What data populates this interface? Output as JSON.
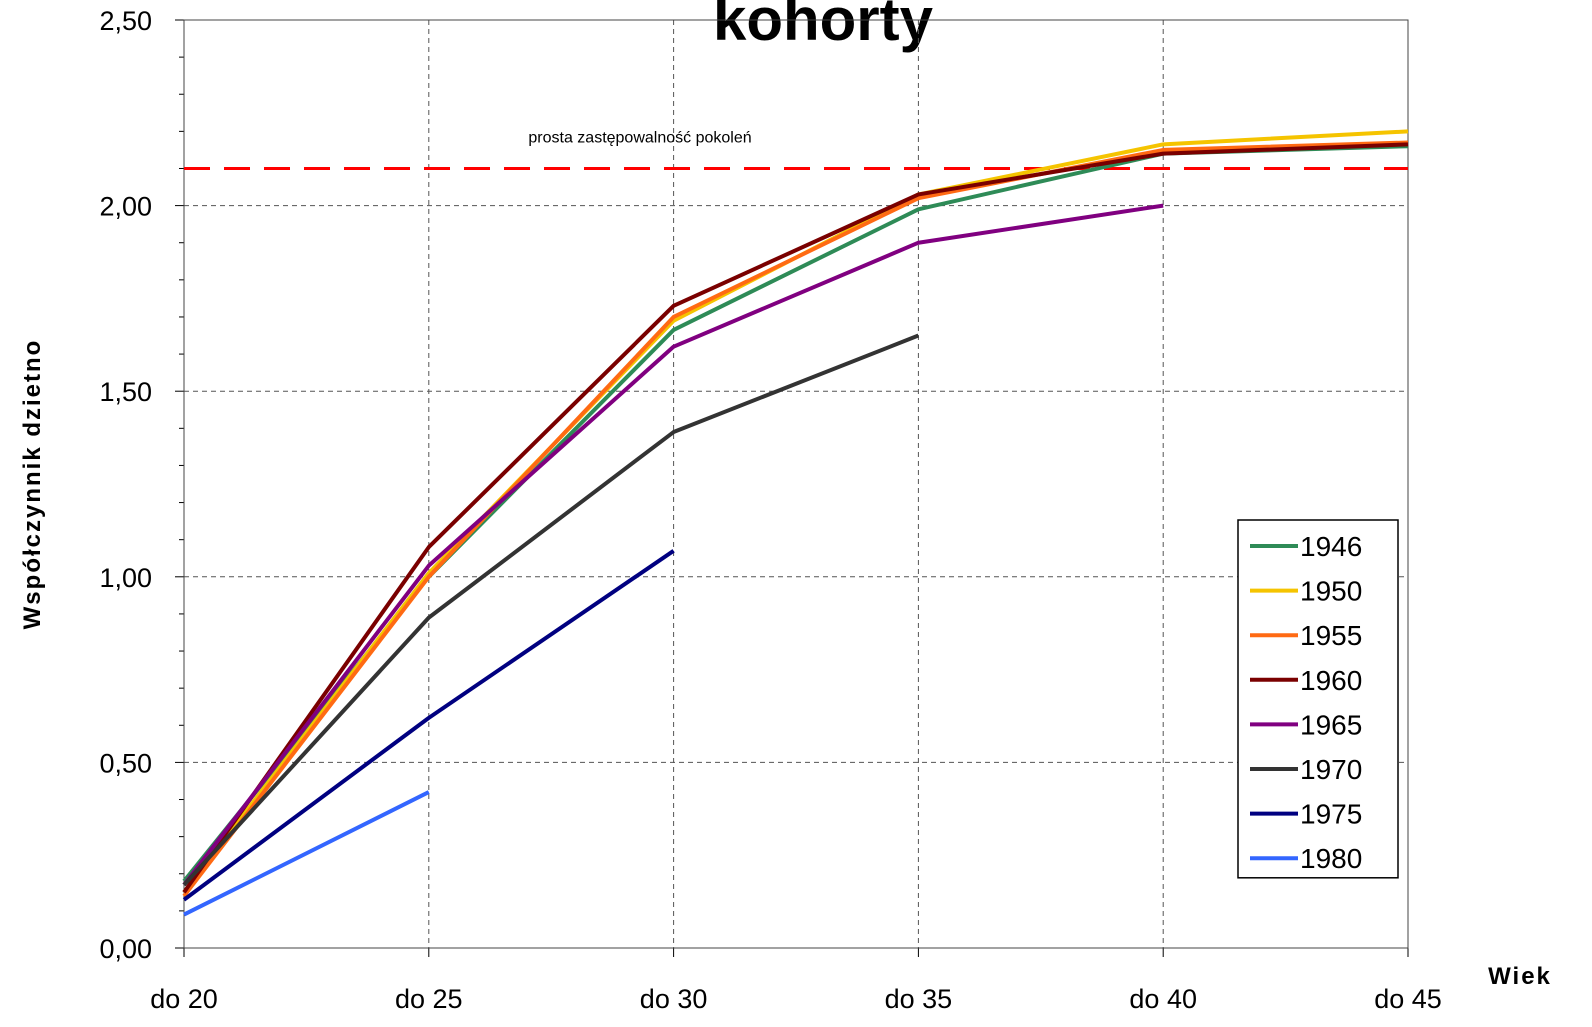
{
  "chart_data": {
    "type": "line",
    "title": "kohorty",
    "x_label": "Wiek",
    "y_label": "Współczynnik dzietno",
    "categories": [
      "do 20",
      "do 25",
      "do 30",
      "do 35",
      "do 40",
      "do 45"
    ],
    "series": [
      {
        "name": "1946",
        "color": "#2e8b57",
        "values": [
          0.18,
          1.0,
          1.665,
          1.99,
          2.14,
          2.16
        ]
      },
      {
        "name": "1950",
        "color": "#f5c400",
        "values": [
          0.15,
          1.01,
          1.69,
          2.03,
          2.165,
          2.2
        ]
      },
      {
        "name": "1955",
        "color": "#ff6a13",
        "values": [
          0.14,
          1.0,
          1.7,
          2.02,
          2.15,
          2.17
        ]
      },
      {
        "name": "1960",
        "color": "#7a0000",
        "values": [
          0.15,
          1.08,
          1.73,
          2.03,
          2.14,
          2.165
        ]
      },
      {
        "name": "1965",
        "color": "#800080",
        "values": [
          0.17,
          1.03,
          1.62,
          1.9,
          2.0,
          null
        ]
      },
      {
        "name": "1970",
        "color": "#333333",
        "values": [
          0.17,
          0.89,
          1.39,
          1.65,
          null,
          null
        ]
      },
      {
        "name": "1975",
        "color": "#000080",
        "values": [
          0.13,
          0.62,
          1.07,
          null,
          null,
          null
        ]
      },
      {
        "name": "1980",
        "color": "#3366ff",
        "values": [
          0.09,
          0.42,
          null,
          null,
          null,
          null
        ]
      }
    ],
    "ylim": [
      0,
      2.5
    ],
    "yticks": [
      {
        "value": 0,
        "label": "0,00"
      },
      {
        "value": 0.5,
        "label": "0,50"
      },
      {
        "value": 1,
        "label": "1,00"
      },
      {
        "value": 1.5,
        "label": "1,50"
      },
      {
        "value": 2,
        "label": "2,00"
      },
      {
        "value": 2.5,
        "label": "2,50"
      }
    ],
    "yminorticks": [
      0.1,
      0.2,
      0.3,
      0.4,
      0.6,
      0.7,
      0.8,
      0.9,
      1.1,
      1.2,
      1.3,
      1.4,
      1.6,
      1.7,
      1.8,
      1.9,
      2.1,
      2.2,
      2.3,
      2.4
    ],
    "reference_lines": [
      {
        "value": 2.1,
        "label": "prosta zastępowalność pokoleń",
        "color": "#ff0000"
      }
    ],
    "grid": true,
    "legend": "lower right"
  }
}
